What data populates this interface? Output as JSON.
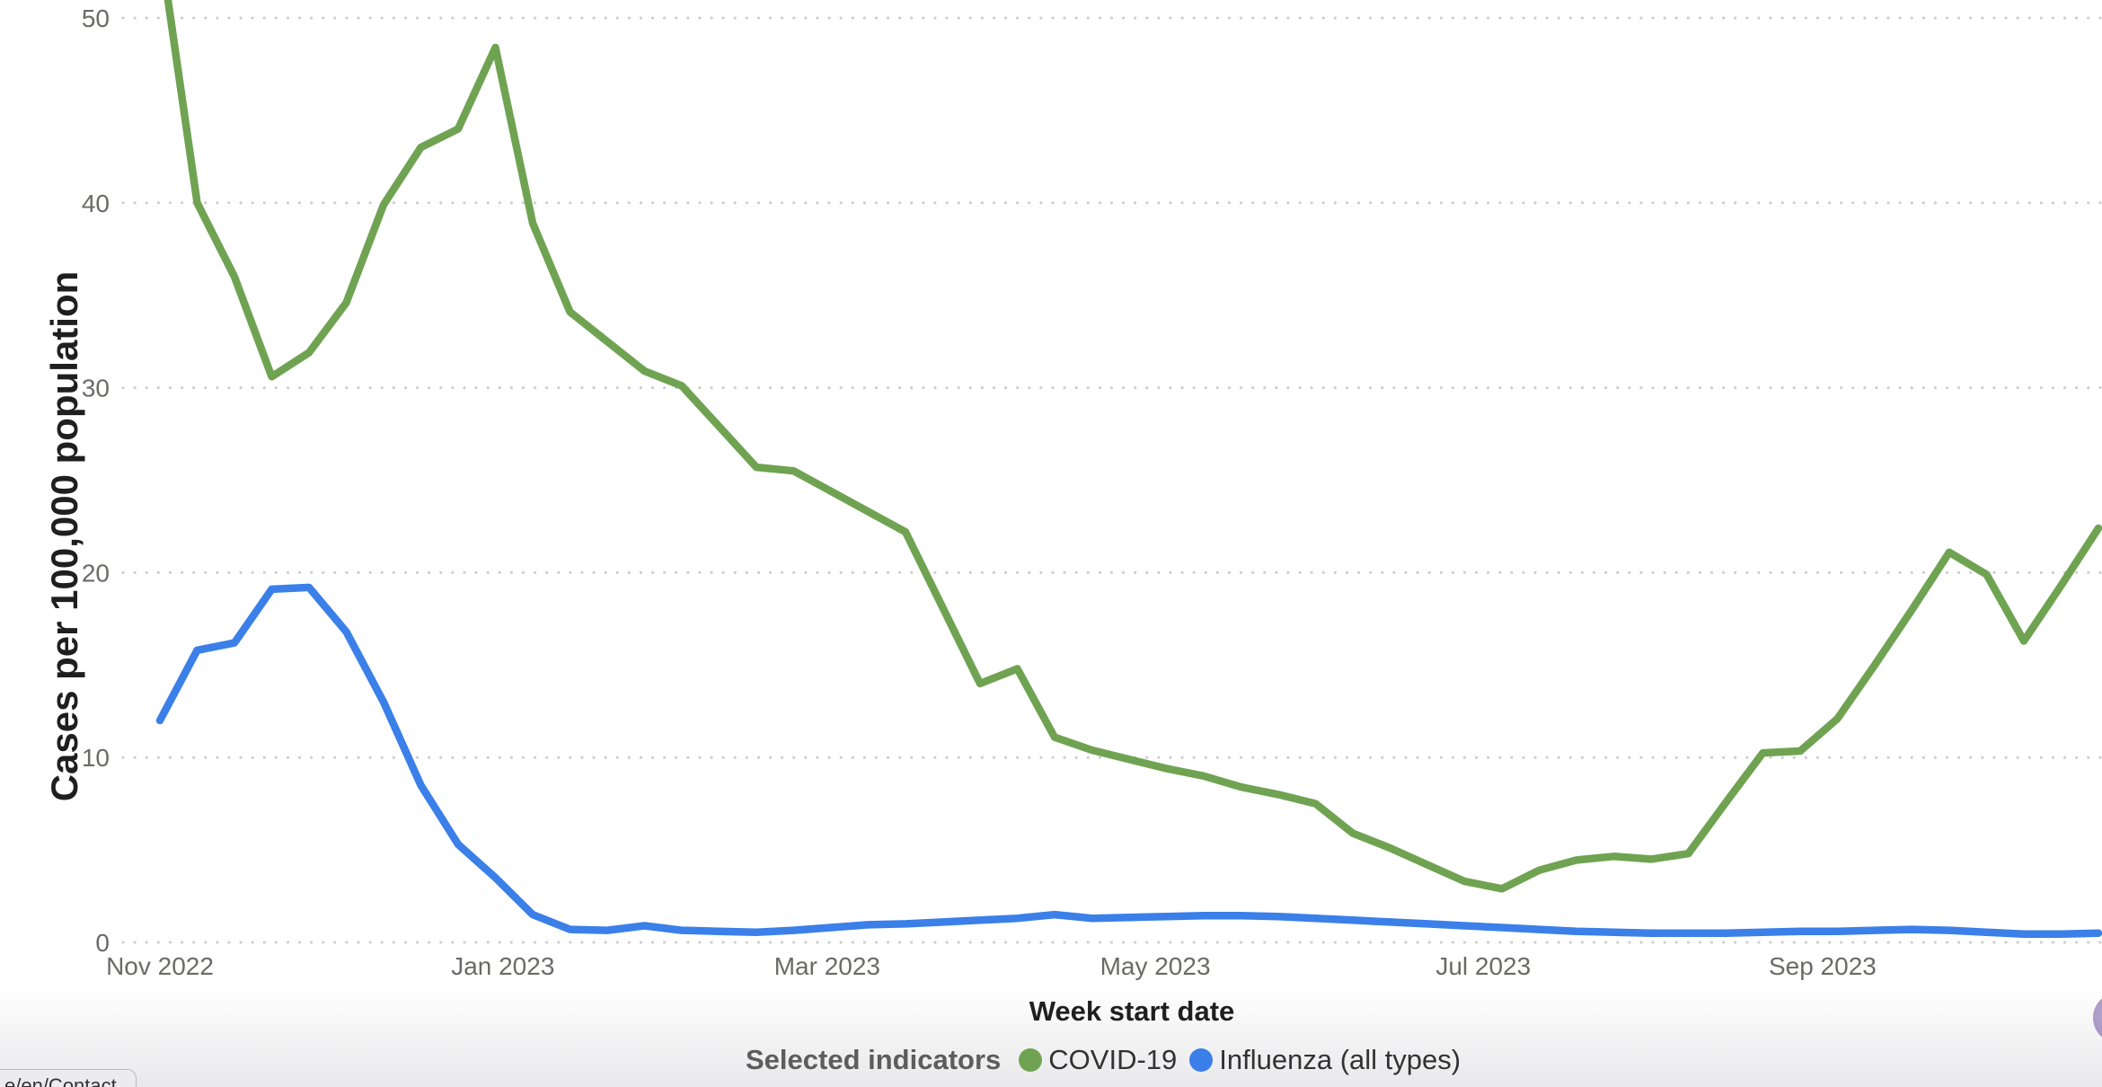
{
  "chart_data": {
    "type": "line",
    "xlabel": "Week start date",
    "ylabel": "Cases per 100,000 population",
    "legend_title": "Selected indicators",
    "legend_position": "bottom",
    "grid": "dotted-horizontal",
    "ylim": [
      0,
      51
    ],
    "y_ticks": [
      0,
      10,
      20,
      30,
      40,
      50
    ],
    "x_unit": "week_start_date_weekly_points",
    "x_ticks": [
      {
        "label": "Nov 2022",
        "week": 0
      },
      {
        "label": "Jan 2023",
        "week": 9.2
      },
      {
        "label": "Mar 2023",
        "week": 17.9
      },
      {
        "label": "May 2023",
        "week": 26.7
      },
      {
        "label": "Jul 2023",
        "week": 35.5
      },
      {
        "label": "Sep 2023",
        "week": 44.6
      }
    ],
    "note": "first COVID-19 point rises above the visible plot top (clipped); series continue past right edge",
    "series": [
      {
        "name": "COVID-19",
        "color": "#6FA352",
        "values": [
          54,
          40,
          36,
          30.6,
          31.9,
          34.6,
          39.9,
          43,
          44,
          48.4,
          38.9,
          34.1,
          32.5,
          30.9,
          30.1,
          27.9,
          25.7,
          25.5,
          24.4,
          23.3,
          22.2,
          18.1,
          14,
          14.8,
          11.1,
          10.4,
          9.9,
          9.4,
          9,
          8.4,
          8,
          7.5,
          5.9,
          5.1,
          4.2,
          3.3,
          2.9,
          3.9,
          4.45,
          4.65,
          4.5,
          4.8,
          7.55,
          10.25,
          10.35,
          12.1,
          15,
          18,
          21.1,
          19.9,
          16.3,
          19.3,
          22.4
        ]
      },
      {
        "name": "Influenza (all types)",
        "color": "#3B7FE9",
        "values": [
          12,
          15.8,
          16.2,
          19.1,
          19.2,
          16.8,
          13,
          8.5,
          5.3,
          3.5,
          1.5,
          0.7,
          0.65,
          0.9,
          0.65,
          0.6,
          0.55,
          0.65,
          0.8,
          0.95,
          1,
          1.1,
          1.2,
          1.3,
          1.5,
          1.3,
          1.35,
          1.4,
          1.45,
          1.45,
          1.4,
          1.3,
          1.2,
          1.1,
          1,
          0.9,
          0.8,
          0.7,
          0.6,
          0.55,
          0.5,
          0.5,
          0.5,
          0.55,
          0.6,
          0.6,
          0.65,
          0.7,
          0.65,
          0.55,
          0.45,
          0.45,
          0.5
        ]
      }
    ]
  },
  "tooltip": {
    "text": "e/en/Contact"
  },
  "fab": {
    "color": "#a293c2"
  }
}
